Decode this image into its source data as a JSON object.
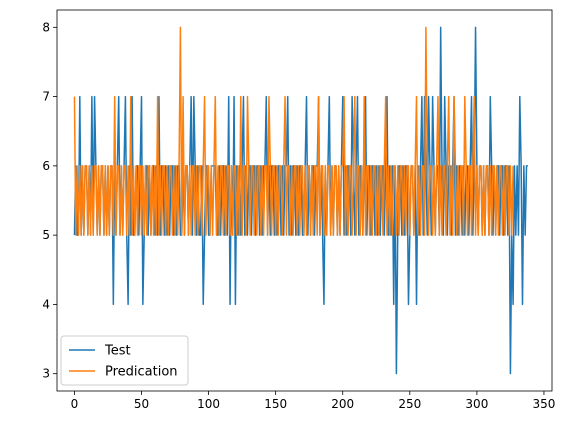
{
  "chart_data": {
    "type": "line",
    "xlim": [
      -13,
      356
    ],
    "ylim": [
      2.75,
      8.25
    ],
    "xticks": [
      0,
      50,
      100,
      150,
      200,
      250,
      300,
      350
    ],
    "yticks": [
      3,
      4,
      5,
      6,
      7,
      8
    ],
    "grid": false,
    "legend_position": "lower-left",
    "series": [
      {
        "name": "Test",
        "color": "#1f77b4",
        "values": [
          5,
          6,
          5,
          5,
          7,
          5,
          6,
          5,
          6,
          6,
          5,
          6,
          5,
          7,
          5,
          7,
          6,
          5,
          6,
          5,
          6,
          6,
          5,
          6,
          5,
          6,
          5,
          6,
          6,
          4,
          6,
          5,
          6,
          7,
          5,
          6,
          5,
          6,
          7,
          5,
          4,
          6,
          5,
          7,
          5,
          5,
          6,
          6,
          5,
          6,
          7,
          4,
          5,
          6,
          6,
          5,
          6,
          5,
          6,
          6,
          5,
          6,
          5,
          7,
          5,
          6,
          6,
          5,
          6,
          5,
          6,
          5,
          6,
          6,
          5,
          6,
          5,
          6,
          6,
          5,
          5,
          6,
          5,
          6,
          6,
          5,
          6,
          7,
          5,
          7,
          6,
          5,
          6,
          5,
          5,
          6,
          4,
          5,
          6,
          6,
          5,
          5,
          6,
          6,
          6,
          6,
          5,
          5,
          6,
          5,
          6,
          6,
          5,
          6,
          5,
          7,
          4,
          6,
          5,
          7,
          4,
          6,
          5,
          6,
          5,
          6,
          7,
          5,
          6,
          5,
          6,
          6,
          5,
          6,
          6,
          5,
          6,
          6,
          5,
          6,
          5,
          6,
          6,
          7,
          5,
          6,
          5,
          6,
          6,
          5,
          6,
          5,
          6,
          6,
          5,
          6,
          5,
          6,
          6,
          7,
          5,
          6,
          5,
          6,
          6,
          5,
          6,
          5,
          6,
          6,
          5,
          5,
          6,
          7,
          5,
          6,
          5,
          6,
          6,
          5,
          6,
          6,
          7,
          5,
          6,
          5,
          4,
          6,
          5,
          6,
          7,
          5,
          6,
          5,
          6,
          6,
          5,
          6,
          5,
          6,
          7,
          5,
          6,
          5,
          6,
          6,
          5,
          7,
          6,
          5,
          6,
          7,
          5,
          6,
          6,
          5,
          6,
          7,
          5,
          6,
          6,
          5,
          6,
          6,
          5,
          6,
          5,
          6,
          5,
          6,
          6,
          5,
          6,
          7,
          5,
          6,
          5,
          6,
          4,
          6,
          3,
          5,
          6,
          6,
          5,
          6,
          5,
          6,
          6,
          4,
          5,
          6,
          6,
          5,
          6,
          4,
          6,
          5,
          6,
          7,
          5,
          7,
          6,
          5,
          7,
          6,
          5,
          7,
          6,
          5,
          6,
          6,
          5,
          8,
          6,
          5,
          7,
          6,
          5,
          6,
          6,
          5,
          6,
          7,
          5,
          6,
          5,
          6,
          6,
          5,
          6,
          5,
          6,
          6,
          5,
          6,
          7,
          5,
          6,
          8,
          6,
          5,
          6,
          6,
          5,
          6,
          5,
          6,
          6,
          5,
          7,
          6,
          5,
          6,
          5,
          6,
          6,
          5,
          6,
          6,
          5,
          6,
          6,
          5,
          6,
          3,
          5,
          4,
          6,
          5,
          6,
          5,
          7,
          6,
          4,
          6,
          5,
          6,
          6
        ],
        "style": "solid"
      },
      {
        "name": "Predication",
        "color": "#ff7f0e",
        "values": [
          7,
          5,
          6,
          5,
          6,
          5,
          6,
          5,
          6,
          6,
          5,
          6,
          5,
          6,
          5,
          6,
          6,
          5,
          6,
          5,
          6,
          6,
          5,
          6,
          5,
          6,
          5,
          6,
          6,
          5,
          7,
          5,
          6,
          6,
          5,
          6,
          5,
          6,
          6,
          5,
          6,
          5,
          7,
          5,
          6,
          5,
          6,
          5,
          6,
          6,
          5,
          6,
          5,
          6,
          5,
          6,
          6,
          5,
          6,
          5,
          6,
          5,
          7,
          5,
          6,
          5,
          6,
          6,
          5,
          6,
          5,
          6,
          6,
          5,
          6,
          5,
          6,
          5,
          6,
          8,
          5,
          7,
          5,
          6,
          6,
          5,
          6,
          5,
          6,
          6,
          5,
          6,
          5,
          6,
          6,
          5,
          6,
          7,
          5,
          6,
          6,
          5,
          6,
          5,
          6,
          7,
          5,
          6,
          5,
          6,
          6,
          5,
          6,
          5,
          6,
          6,
          5,
          6,
          5,
          6,
          6,
          5,
          6,
          5,
          7,
          5,
          6,
          6,
          5,
          7,
          6,
          5,
          6,
          6,
          5,
          6,
          5,
          6,
          6,
          5,
          6,
          5,
          6,
          6,
          5,
          7,
          6,
          5,
          6,
          6,
          5,
          6,
          5,
          6,
          6,
          5,
          6,
          7,
          5,
          6,
          6,
          5,
          6,
          5,
          6,
          6,
          5,
          6,
          5,
          6,
          6,
          5,
          6,
          5,
          6,
          6,
          5,
          6,
          5,
          6,
          6,
          5,
          7,
          5,
          6,
          6,
          5,
          6,
          5,
          6,
          6,
          5,
          6,
          5,
          6,
          6,
          5,
          6,
          5,
          6,
          6,
          7,
          5,
          6,
          5,
          6,
          6,
          5,
          6,
          7,
          5,
          6,
          6,
          5,
          6,
          5,
          7,
          5,
          6,
          6,
          5,
          6,
          5,
          6,
          6,
          5,
          6,
          5,
          6,
          6,
          5,
          6,
          7,
          5,
          6,
          5,
          6,
          5,
          6,
          6,
          5,
          6,
          5,
          6,
          6,
          5,
          6,
          5,
          6,
          6,
          5,
          6,
          6,
          5,
          6,
          7,
          5,
          6,
          5,
          6,
          6,
          5,
          8,
          6,
          5,
          6,
          6,
          5,
          6,
          5,
          6,
          7,
          5,
          6,
          5,
          6,
          6,
          5,
          6,
          7,
          5,
          6,
          5,
          7,
          6,
          5,
          6,
          5,
          6,
          6,
          5,
          7,
          6,
          5,
          6,
          6,
          5,
          6,
          7,
          5,
          6,
          5,
          6,
          6,
          5,
          6,
          5,
          6,
          6,
          5,
          6,
          5,
          6,
          6,
          5,
          6,
          5,
          6,
          6,
          5,
          6,
          5,
          6,
          6,
          5,
          6,
          5,
          6
        ],
        "style": "solid"
      }
    ]
  }
}
